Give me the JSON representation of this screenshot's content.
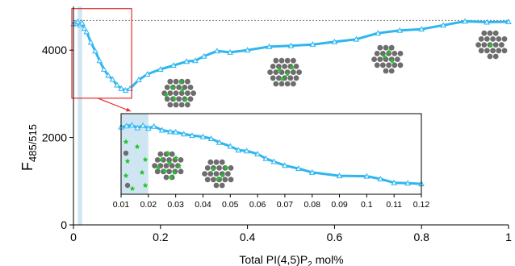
{
  "chart_data": [
    {
      "type": "line",
      "xlabel": "Total PI(4,5)P",
      "xlabel_sub": "2",
      "xlabel_suffix": " mol%",
      "ylabel": "F",
      "ylabel_sub": "485/515",
      "xlim": [
        0,
        1
      ],
      "ylim": [
        0,
        5000
      ],
      "xticks": [
        0,
        0.2,
        0.4,
        0.6,
        0.8,
        1
      ],
      "xtick_labels": [
        "0",
        "0.2",
        "0.4",
        "0.6",
        "0.8",
        "1"
      ],
      "yticks": [
        0,
        2000,
        4000
      ],
      "ytick_labels": [
        "0",
        "2000",
        "4000"
      ],
      "reference_line_y": 4680,
      "shaded_x_range": [
        0.01,
        0.02
      ],
      "zoom_box_x": [
        0,
        0.13
      ],
      "zoom_box_y": [
        2900,
        4950
      ],
      "series_color": "#2eb6f0",
      "series": [
        {
          "x": [
            0,
            0.005,
            0.01,
            0.015,
            0.02,
            0.025,
            0.03,
            0.04,
            0.05,
            0.06,
            0.07,
            0.08,
            0.09,
            0.1,
            0.11,
            0.12,
            0.13,
            0.15,
            0.17,
            0.2,
            0.23,
            0.26,
            0.28,
            0.3,
            0.33,
            0.36,
            0.4,
            0.45,
            0.5,
            0.55,
            0.6,
            0.65,
            0.7,
            0.75,
            0.8,
            0.85,
            0.9,
            0.95,
            1.0
          ],
          "values": [
            4600,
            4620,
            4650,
            4580,
            4620,
            4500,
            4420,
            4180,
            3980,
            3760,
            3560,
            3420,
            3330,
            3200,
            3120,
            3080,
            3120,
            3320,
            3450,
            3560,
            3650,
            3740,
            3760,
            3860,
            3980,
            3950,
            4000,
            4080,
            4100,
            4130,
            4190,
            4250,
            4390,
            4450,
            4480,
            4570,
            4660,
            4640,
            4650
          ]
        }
      ]
    },
    {
      "type": "line",
      "xlim": [
        0.01,
        0.12
      ],
      "ylim": [
        2850,
        4950
      ],
      "xticks": [
        0.01,
        0.02,
        0.03,
        0.04,
        0.05,
        0.06,
        0.07,
        0.08,
        0.09,
        0.1,
        0.11,
        0.12
      ],
      "xtick_labels": [
        "0.01",
        "0.02",
        "0.03",
        "0.04",
        "0.05",
        "0.06",
        "0.07",
        "0.08",
        "0.09",
        "0.1",
        "0.11",
        "0.12"
      ],
      "shaded_x_range": [
        0.01,
        0.02
      ],
      "series": [
        {
          "x": [
            0.01,
            0.012,
            0.014,
            0.016,
            0.018,
            0.02,
            0.022,
            0.025,
            0.028,
            0.03,
            0.033,
            0.036,
            0.04,
            0.043,
            0.046,
            0.05,
            0.053,
            0.056,
            0.06,
            0.063,
            0.066,
            0.07,
            0.075,
            0.08,
            0.09,
            0.1,
            0.105,
            0.11,
            0.115,
            0.12
          ],
          "values": [
            4600,
            4630,
            4650,
            4580,
            4640,
            4570,
            4620,
            4520,
            4480,
            4470,
            4420,
            4380,
            4350,
            4300,
            4200,
            4100,
            4000,
            3980,
            3900,
            3780,
            3700,
            3600,
            3520,
            3420,
            3330,
            3320,
            3250,
            3150,
            3140,
            3120
          ]
        }
      ]
    }
  ],
  "vesicles": [
    {
      "cx": 222,
      "cy": 116,
      "r": 22,
      "green": [
        [
          214,
          109
        ],
        [
          226,
          112
        ],
        [
          216,
          122
        ],
        [
          230,
          124
        ],
        [
          206,
          118
        ],
        [
          224,
          102
        ]
      ]
    },
    {
      "cx": 353,
      "cy": 90,
      "r": 22,
      "green": [
        [
          346,
          86
        ],
        [
          356,
          92
        ],
        [
          362,
          84
        ],
        [
          350,
          98
        ]
      ]
    },
    {
      "cx": 481,
      "cy": 73,
      "r": 21,
      "green": [
        [
          476,
          70
        ],
        [
          486,
          76
        ],
        [
          482,
          64
        ]
      ]
    },
    {
      "cx": 610,
      "cy": 55,
      "r": 21,
      "green": [
        [
          608,
          56
        ]
      ]
    },
    {
      "cx": 209,
      "cy": 205,
      "r": 21,
      "green": [
        [
          200,
          198
        ],
        [
          210,
          202
        ],
        [
          218,
          196
        ],
        [
          204,
          212
        ],
        [
          216,
          214
        ],
        [
          196,
          208
        ],
        [
          222,
          206
        ],
        [
          208,
          190
        ],
        [
          212,
          220
        ]
      ]
    },
    {
      "cx": 271,
      "cy": 215,
      "r": 21,
      "green": [
        [
          264,
          210
        ],
        [
          276,
          218
        ],
        [
          270,
          222
        ],
        [
          280,
          208
        ]
      ]
    }
  ],
  "free_lipids": {
    "stars": [
      [
        156,
        176
      ],
      [
        170,
        182
      ],
      [
        180,
        198
      ],
      [
        158,
        200
      ],
      [
        176,
        214
      ],
      [
        156,
        218
      ],
      [
        180,
        230
      ],
      [
        164,
        234
      ]
    ],
    "grey": [
      [
        156,
        190
      ],
      [
        158,
        230
      ]
    ]
  }
}
